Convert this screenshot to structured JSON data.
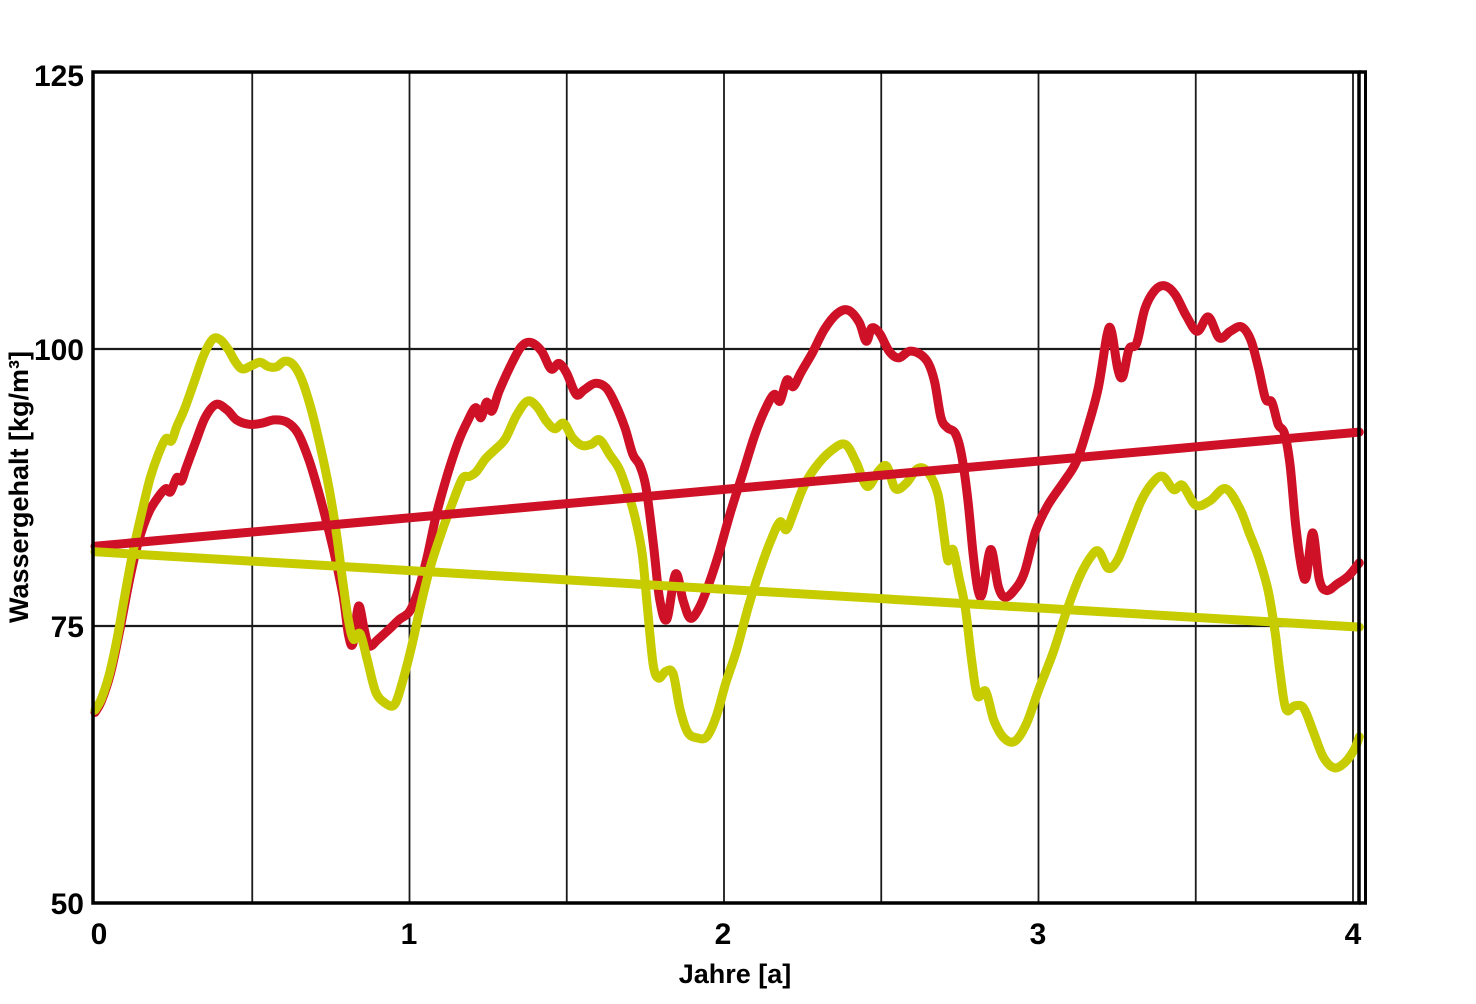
{
  "colors": {
    "background": "#ffffff",
    "axis": "#000000",
    "grid": "#1a1a1a",
    "red_series": "#ce1126",
    "yellow_series": "#c6cc00"
  },
  "chart_data": {
    "type": "line",
    "title": "",
    "xlabel": "Jahre [a]",
    "ylabel": "Wassergehalt [kg/m³]",
    "xlim": [
      0,
      4.03
    ],
    "ylim": [
      50,
      125
    ],
    "x_tick_labels": [
      "0",
      "1",
      "2",
      "3",
      "4"
    ],
    "x_tick_values": [
      0,
      1,
      2,
      3,
      4
    ],
    "y_tick_labels": [
      "125",
      "100",
      "75",
      "50"
    ],
    "y_tick_values": [
      125,
      100,
      75,
      50
    ],
    "grid": {
      "vertical_values": [
        0.5,
        1,
        1.5,
        2,
        2.5,
        3,
        3.5,
        4
      ],
      "horizontal_values": [
        75,
        100
      ],
      "on": true
    },
    "legend": {
      "shown": false
    },
    "series": [
      {
        "name": "red-curve",
        "color": "#ce1126",
        "width": 9,
        "smooth": true,
        "points": [
          [
            0.0,
            67.2
          ],
          [
            0.02,
            68.2
          ],
          [
            0.05,
            70.8
          ],
          [
            0.08,
            74.8
          ],
          [
            0.11,
            79.2
          ],
          [
            0.14,
            82.8
          ],
          [
            0.17,
            85.2
          ],
          [
            0.2,
            86.6
          ],
          [
            0.225,
            87.4
          ],
          [
            0.24,
            87.1
          ],
          [
            0.26,
            88.4
          ],
          [
            0.275,
            88.1
          ],
          [
            0.29,
            89.3
          ],
          [
            0.32,
            91.6
          ],
          [
            0.35,
            93.8
          ],
          [
            0.385,
            95.0
          ],
          [
            0.42,
            94.5
          ],
          [
            0.45,
            93.6
          ],
          [
            0.49,
            93.2
          ],
          [
            0.53,
            93.3
          ],
          [
            0.57,
            93.6
          ],
          [
            0.61,
            93.4
          ],
          [
            0.645,
            92.4
          ],
          [
            0.68,
            90.0
          ],
          [
            0.71,
            87.2
          ],
          [
            0.74,
            84.0
          ],
          [
            0.765,
            81.0
          ],
          [
            0.79,
            77.5
          ],
          [
            0.806,
            74.2
          ],
          [
            0.82,
            73.4
          ],
          [
            0.838,
            76.8
          ],
          [
            0.856,
            74.7
          ],
          [
            0.872,
            73.2
          ],
          [
            0.9,
            73.8
          ],
          [
            0.935,
            74.7
          ],
          [
            0.968,
            75.6
          ],
          [
            1.0,
            76.3
          ],
          [
            1.028,
            78.2
          ],
          [
            1.056,
            81.2
          ],
          [
            1.085,
            85.0
          ],
          [
            1.12,
            88.6
          ],
          [
            1.155,
            91.6
          ],
          [
            1.185,
            93.5
          ],
          [
            1.21,
            94.7
          ],
          [
            1.227,
            93.8
          ],
          [
            1.245,
            95.2
          ],
          [
            1.262,
            94.4
          ],
          [
            1.285,
            96.2
          ],
          [
            1.32,
            98.4
          ],
          [
            1.355,
            100.2
          ],
          [
            1.385,
            100.6
          ],
          [
            1.42,
            99.8
          ],
          [
            1.45,
            98.2
          ],
          [
            1.475,
            98.7
          ],
          [
            1.5,
            97.8
          ],
          [
            1.53,
            95.9
          ],
          [
            1.555,
            96.3
          ],
          [
            1.59,
            96.9
          ],
          [
            1.625,
            96.5
          ],
          [
            1.655,
            95.0
          ],
          [
            1.685,
            92.9
          ],
          [
            1.71,
            90.5
          ],
          [
            1.732,
            89.5
          ],
          [
            1.752,
            87.5
          ],
          [
            1.775,
            82.5
          ],
          [
            1.795,
            77.5
          ],
          [
            1.818,
            75.6
          ],
          [
            1.846,
            79.7
          ],
          [
            1.87,
            77.3
          ],
          [
            1.893,
            75.7
          ],
          [
            1.922,
            76.7
          ],
          [
            1.952,
            78.8
          ],
          [
            1.983,
            81.5
          ],
          [
            2.02,
            85.2
          ],
          [
            2.06,
            88.8
          ],
          [
            2.1,
            92.4
          ],
          [
            2.135,
            94.8
          ],
          [
            2.16,
            95.9
          ],
          [
            2.178,
            95.3
          ],
          [
            2.2,
            97.2
          ],
          [
            2.22,
            96.6
          ],
          [
            2.245,
            97.9
          ],
          [
            2.28,
            99.6
          ],
          [
            2.32,
            101.8
          ],
          [
            2.36,
            103.2
          ],
          [
            2.395,
            103.5
          ],
          [
            2.43,
            102.4
          ],
          [
            2.452,
            100.7
          ],
          [
            2.47,
            101.9
          ],
          [
            2.495,
            101.4
          ],
          [
            2.525,
            99.8
          ],
          [
            2.555,
            99.2
          ],
          [
            2.59,
            99.8
          ],
          [
            2.625,
            99.5
          ],
          [
            2.65,
            98.7
          ],
          [
            2.67,
            97.0
          ],
          [
            2.69,
            93.8
          ],
          [
            2.71,
            92.9
          ],
          [
            2.735,
            92.4
          ],
          [
            2.755,
            90.5
          ],
          [
            2.775,
            86.5
          ],
          [
            2.792,
            81.5
          ],
          [
            2.808,
            78.2
          ],
          [
            2.822,
            78.0
          ],
          [
            2.848,
            81.9
          ],
          [
            2.872,
            78.6
          ],
          [
            2.893,
            77.6
          ],
          [
            2.922,
            78.2
          ],
          [
            2.955,
            79.8
          ],
          [
            2.99,
            83.5
          ],
          [
            3.03,
            85.9
          ],
          [
            3.08,
            88.0
          ],
          [
            3.12,
            89.8
          ],
          [
            3.155,
            92.8
          ],
          [
            3.19,
            96.5
          ],
          [
            3.218,
            101.3
          ],
          [
            3.232,
            101.6
          ],
          [
            3.252,
            98.2
          ],
          [
            3.268,
            97.5
          ],
          [
            3.288,
            100.0
          ],
          [
            3.312,
            100.5
          ],
          [
            3.338,
            103.6
          ],
          [
            3.37,
            105.3
          ],
          [
            3.402,
            105.7
          ],
          [
            3.435,
            104.9
          ],
          [
            3.47,
            103.0
          ],
          [
            3.505,
            101.6
          ],
          [
            3.54,
            102.9
          ],
          [
            3.575,
            101.0
          ],
          [
            3.61,
            101.6
          ],
          [
            3.645,
            102.0
          ],
          [
            3.675,
            100.8
          ],
          [
            3.7,
            98.2
          ],
          [
            3.722,
            95.5
          ],
          [
            3.742,
            95.2
          ],
          [
            3.762,
            93.2
          ],
          [
            3.782,
            92.4
          ],
          [
            3.8,
            89.5
          ],
          [
            3.818,
            84.0
          ],
          [
            3.838,
            80.0
          ],
          [
            3.852,
            79.5
          ],
          [
            3.872,
            83.4
          ],
          [
            3.893,
            79.2
          ],
          [
            3.916,
            78.2
          ],
          [
            3.95,
            78.8
          ],
          [
            3.985,
            79.5
          ],
          [
            4.02,
            80.7
          ]
        ]
      },
      {
        "name": "yellow-curve",
        "color": "#c6cc00",
        "width": 9,
        "smooth": true,
        "points": [
          [
            0.0,
            67.4
          ],
          [
            0.02,
            68.4
          ],
          [
            0.045,
            70.6
          ],
          [
            0.07,
            73.8
          ],
          [
            0.095,
            77.8
          ],
          [
            0.12,
            81.6
          ],
          [
            0.15,
            85.4
          ],
          [
            0.175,
            88.3
          ],
          [
            0.2,
            90.4
          ],
          [
            0.225,
            91.9
          ],
          [
            0.243,
            91.7
          ],
          [
            0.26,
            93.0
          ],
          [
            0.285,
            94.6
          ],
          [
            0.315,
            97.0
          ],
          [
            0.345,
            99.4
          ],
          [
            0.375,
            100.9
          ],
          [
            0.4,
            100.8
          ],
          [
            0.425,
            99.9
          ],
          [
            0.445,
            98.9
          ],
          [
            0.468,
            98.2
          ],
          [
            0.498,
            98.5
          ],
          [
            0.525,
            98.8
          ],
          [
            0.553,
            98.4
          ],
          [
            0.578,
            98.4
          ],
          [
            0.603,
            98.9
          ],
          [
            0.63,
            98.6
          ],
          [
            0.658,
            97.2
          ],
          [
            0.688,
            94.5
          ],
          [
            0.718,
            91.0
          ],
          [
            0.745,
            87.3
          ],
          [
            0.768,
            83.3
          ],
          [
            0.788,
            79.0
          ],
          [
            0.806,
            75.5
          ],
          [
            0.822,
            73.8
          ],
          [
            0.843,
            74.3
          ],
          [
            0.866,
            71.9
          ],
          [
            0.892,
            69.1
          ],
          [
            0.92,
            68.1
          ],
          [
            0.952,
            67.9
          ],
          [
            0.978,
            70.0
          ],
          [
            1.008,
            73.3
          ],
          [
            1.035,
            76.8
          ],
          [
            1.065,
            80.2
          ],
          [
            1.1,
            83.3
          ],
          [
            1.135,
            86.0
          ],
          [
            1.168,
            88.3
          ],
          [
            1.19,
            88.5
          ],
          [
            1.212,
            88.9
          ],
          [
            1.242,
            90.1
          ],
          [
            1.275,
            91.0
          ],
          [
            1.305,
            91.9
          ],
          [
            1.34,
            94.0
          ],
          [
            1.375,
            95.3
          ],
          [
            1.405,
            94.8
          ],
          [
            1.435,
            93.5
          ],
          [
            1.462,
            92.8
          ],
          [
            1.49,
            93.3
          ],
          [
            1.518,
            92.0
          ],
          [
            1.548,
            91.3
          ],
          [
            1.578,
            91.4
          ],
          [
            1.605,
            91.8
          ],
          [
            1.638,
            90.4
          ],
          [
            1.668,
            89.1
          ],
          [
            1.698,
            86.7
          ],
          [
            1.718,
            84.7
          ],
          [
            1.74,
            81.5
          ],
          [
            1.757,
            76.5
          ],
          [
            1.775,
            71.5
          ],
          [
            1.792,
            70.3
          ],
          [
            1.815,
            70.9
          ],
          [
            1.838,
            70.7
          ],
          [
            1.86,
            67.5
          ],
          [
            1.885,
            65.4
          ],
          [
            1.915,
            64.9
          ],
          [
            1.945,
            65.0
          ],
          [
            1.975,
            66.8
          ],
          [
            2.005,
            69.8
          ],
          [
            2.04,
            72.8
          ],
          [
            2.08,
            77.0
          ],
          [
            2.12,
            80.5
          ],
          [
            2.15,
            82.8
          ],
          [
            2.178,
            84.4
          ],
          [
            2.198,
            83.7
          ],
          [
            2.222,
            85.3
          ],
          [
            2.252,
            87.5
          ],
          [
            2.29,
            89.3
          ],
          [
            2.34,
            90.8
          ],
          [
            2.385,
            91.4
          ],
          [
            2.42,
            89.8
          ],
          [
            2.455,
            87.6
          ],
          [
            2.492,
            89.0
          ],
          [
            2.518,
            89.4
          ],
          [
            2.545,
            87.4
          ],
          [
            2.58,
            87.9
          ],
          [
            2.615,
            89.2
          ],
          [
            2.648,
            88.9
          ],
          [
            2.68,
            86.9
          ],
          [
            2.698,
            83.5
          ],
          [
            2.712,
            80.9
          ],
          [
            2.728,
            81.9
          ],
          [
            2.748,
            79.3
          ],
          [
            2.768,
            76.5
          ],
          [
            2.788,
            71.8
          ],
          [
            2.806,
            68.7
          ],
          [
            2.832,
            69.1
          ],
          [
            2.858,
            66.5
          ],
          [
            2.89,
            64.9
          ],
          [
            2.925,
            64.6
          ],
          [
            2.962,
            66.2
          ],
          [
            3.0,
            69.2
          ],
          [
            3.045,
            72.5
          ],
          [
            3.09,
            76.4
          ],
          [
            3.13,
            79.4
          ],
          [
            3.17,
            81.4
          ],
          [
            3.193,
            81.7
          ],
          [
            3.222,
            80.2
          ],
          [
            3.252,
            81.0
          ],
          [
            3.285,
            83.3
          ],
          [
            3.325,
            86.2
          ],
          [
            3.362,
            87.9
          ],
          [
            3.395,
            88.5
          ],
          [
            3.43,
            87.3
          ],
          [
            3.458,
            87.7
          ],
          [
            3.5,
            85.9
          ],
          [
            3.545,
            86.3
          ],
          [
            3.595,
            87.4
          ],
          [
            3.64,
            85.6
          ],
          [
            3.67,
            83.4
          ],
          [
            3.7,
            81.2
          ],
          [
            3.73,
            78.2
          ],
          [
            3.752,
            74.5
          ],
          [
            3.768,
            70.8
          ],
          [
            3.787,
            67.5
          ],
          [
            3.815,
            67.8
          ],
          [
            3.843,
            67.6
          ],
          [
            3.872,
            65.6
          ],
          [
            3.905,
            63.2
          ],
          [
            3.94,
            62.2
          ],
          [
            3.975,
            62.7
          ],
          [
            4.005,
            63.9
          ],
          [
            4.02,
            65.0
          ]
        ]
      },
      {
        "name": "red-trend",
        "color": "#ce1126",
        "width": 9,
        "smooth": false,
        "points": [
          [
            0.0,
            82.2
          ],
          [
            4.02,
            92.5
          ]
        ]
      },
      {
        "name": "yellow-trend",
        "color": "#c6cc00",
        "width": 9,
        "smooth": false,
        "points": [
          [
            0.0,
            81.7
          ],
          [
            4.02,
            74.9
          ]
        ]
      }
    ]
  }
}
